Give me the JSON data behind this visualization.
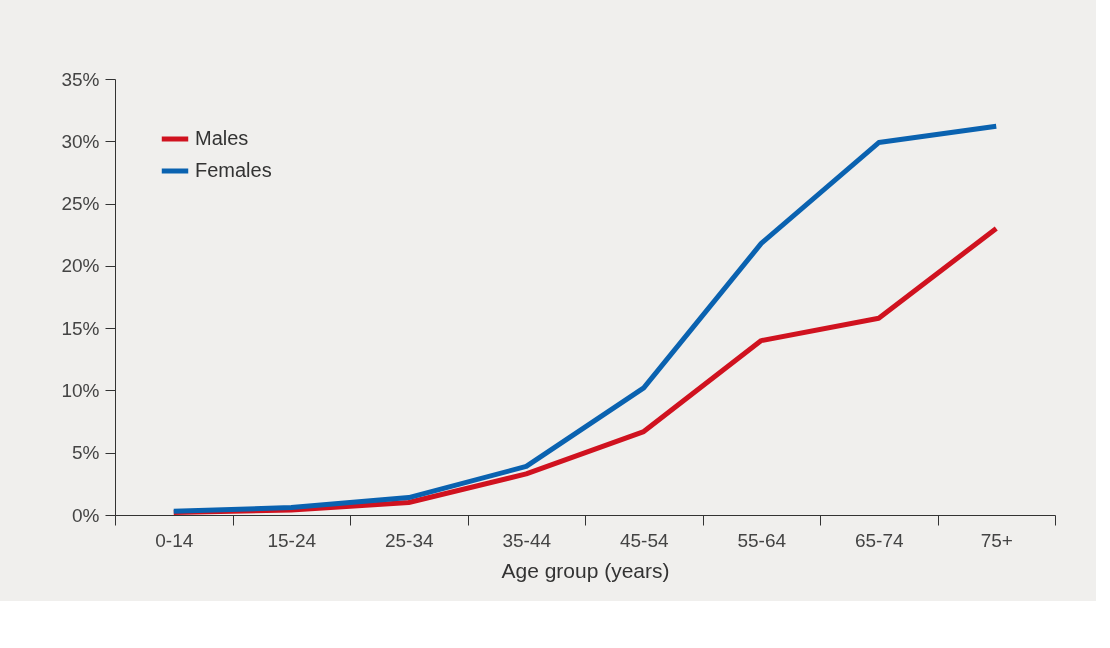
{
  "chart_data": {
    "type": "line",
    "xlabel": "Age group (years)",
    "categories": [
      "0-14",
      "15-24",
      "25-34",
      "35-44",
      "45-54",
      "55-64",
      "65-74",
      "75+"
    ],
    "series": [
      {
        "name": "Males",
        "color": "#d0121f",
        "values": [
          0.2,
          0.4,
          1.0,
          3.3,
          6.7,
          14.0,
          15.8,
          23.0
        ]
      },
      {
        "name": "Females",
        "color": "#0a62b0",
        "values": [
          0.3,
          0.6,
          1.4,
          3.9,
          10.2,
          21.8,
          29.9,
          31.2
        ]
      }
    ],
    "ylim": [
      0,
      35
    ],
    "yticks": [
      {
        "value": 0,
        "label": "0%"
      },
      {
        "value": 5,
        "label": "5%"
      },
      {
        "value": 10,
        "label": "10%"
      },
      {
        "value": 15,
        "label": "15%"
      },
      {
        "value": 20,
        "label": "20%"
      },
      {
        "value": 25,
        "label": "25%"
      },
      {
        "value": 30,
        "label": "30%"
      },
      {
        "value": 35,
        "label": "35%"
      }
    ],
    "grid": false,
    "legend": "top left",
    "marker": "none",
    "line_style": "solid"
  }
}
